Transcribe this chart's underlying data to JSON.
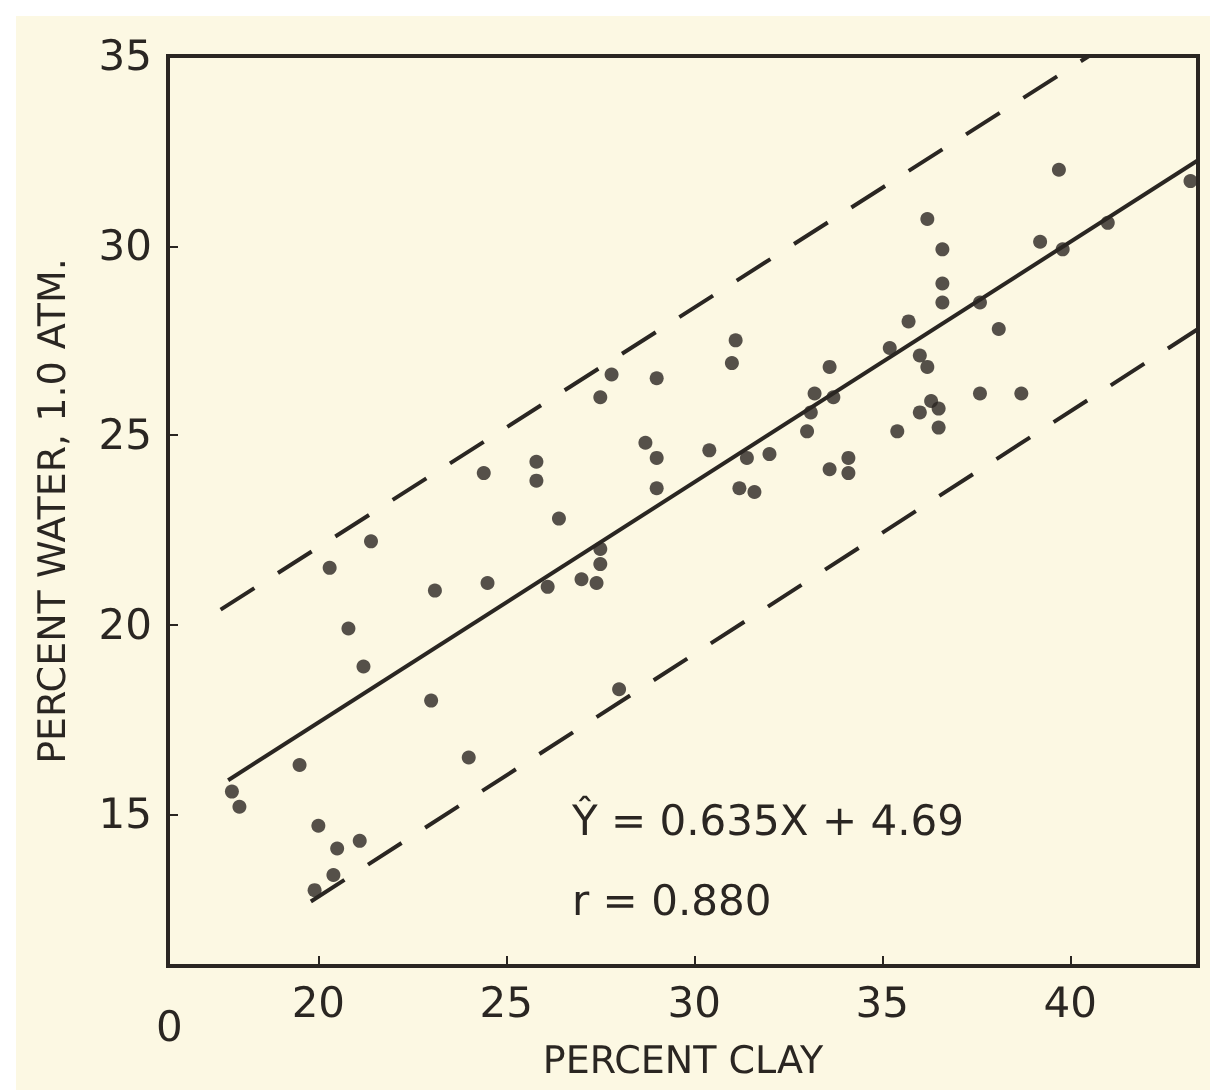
{
  "chart_data": {
    "type": "scatter",
    "xlabel": "PERCENT CLAY",
    "ylabel": "PERCENT WATER, 1.0 ATM.",
    "xlim": [
      16,
      43.4
    ],
    "ylim": [
      11,
      35
    ],
    "xticks": [
      20,
      25,
      30,
      35,
      40
    ],
    "yticks": [
      15,
      20,
      25,
      30,
      35
    ],
    "marker": "circle",
    "annotations": [
      "Ŷ = 0.635X + 4.69",
      "r = 0.880",
      "0"
    ],
    "series": [
      {
        "color": "#2a2622",
        "x": [
          17.7,
          17.9,
          19.5,
          20.0,
          19.9,
          20.4,
          20.5,
          21.1,
          20.3,
          20.8,
          21.2,
          21.4,
          23.0,
          23.1,
          24.0,
          24.5,
          26.1,
          27.0,
          27.4,
          27.5,
          27.5,
          24.4,
          25.8,
          25.8,
          26.4,
          27.5,
          28.0,
          27.8,
          29.0,
          28.7,
          29.0,
          29.0,
          30.4,
          31.4,
          31.2,
          31.6,
          32.0,
          31.0,
          31.1,
          33.0,
          33.1,
          33.2,
          33.7,
          33.6,
          33.6,
          34.1,
          34.1,
          35.2,
          35.4,
          35.7,
          36.0,
          36.2,
          36.2,
          36.6,
          36.6,
          36.6,
          36.3,
          36.0,
          36.5,
          36.5,
          37.6,
          37.6,
          38.1,
          38.7,
          39.2,
          39.7,
          39.8,
          41.0,
          43.2
        ],
        "values": [
          15.6,
          15.2,
          16.3,
          14.7,
          13.0,
          13.4,
          14.1,
          14.3,
          21.5,
          19.9,
          18.9,
          22.2,
          18.0,
          20.9,
          16.5,
          21.1,
          21.0,
          21.2,
          21.1,
          21.6,
          22.0,
          24.0,
          24.3,
          23.8,
          22.8,
          26.0,
          18.3,
          26.6,
          26.5,
          24.8,
          24.4,
          23.6,
          24.6,
          24.4,
          23.6,
          23.5,
          24.5,
          26.9,
          27.5,
          25.1,
          25.6,
          26.1,
          26.0,
          26.8,
          24.1,
          24.4,
          24.0,
          27.3,
          25.1,
          28.0,
          27.1,
          26.8,
          30.7,
          29.9,
          29.0,
          28.5,
          25.9,
          25.6,
          25.7,
          25.2,
          26.1,
          28.5,
          27.8,
          26.1,
          30.1,
          32.0,
          29.9,
          30.6,
          31.7
        ]
      },
      {
        "type": "line",
        "color": "#2a2622",
        "line_style": "solid",
        "marker": "none",
        "x": [
          17.6,
          43.4
        ],
        "values": [
          15.9,
          32.25
        ]
      },
      {
        "type": "line",
        "color": "#2a2622",
        "line_style": "dashed",
        "marker": "none",
        "x": [
          17.4,
          40.5
        ],
        "values": [
          20.4,
          35.0
        ]
      },
      {
        "type": "line",
        "color": "#2a2622",
        "line_style": "dashed",
        "marker": "none",
        "x": [
          19.8,
          43.4
        ],
        "values": [
          12.7,
          27.8
        ]
      }
    ]
  }
}
